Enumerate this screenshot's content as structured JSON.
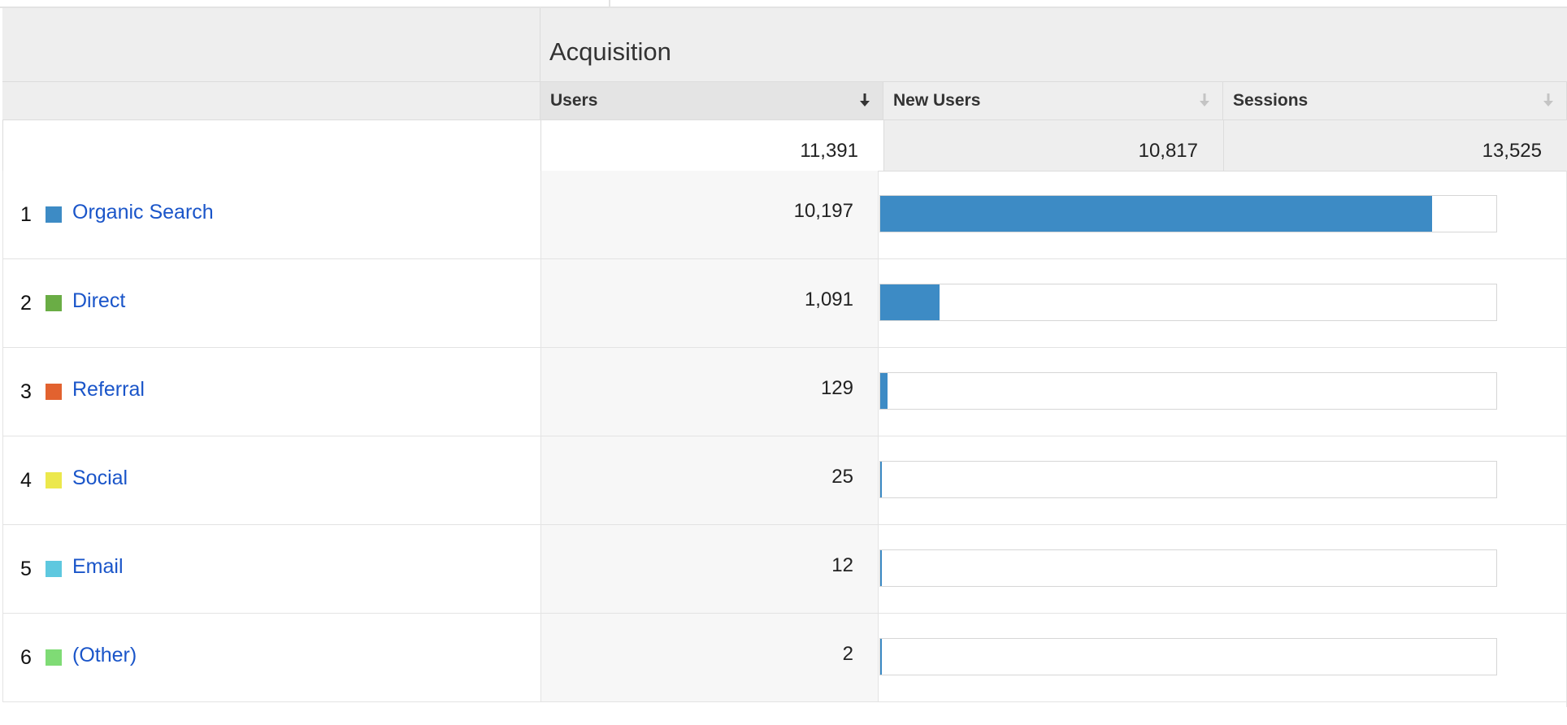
{
  "group_header": {
    "title": "Acquisition"
  },
  "columns": [
    {
      "key": "users",
      "label": "Users",
      "sorted": true,
      "sort_direction": "desc"
    },
    {
      "key": "new_users",
      "label": "New Users",
      "sorted": false
    },
    {
      "key": "sessions",
      "label": "Sessions",
      "sorted": false
    }
  ],
  "totals": {
    "users": "11,391",
    "new_users": "10,817",
    "sessions": "13,525"
  },
  "rows": [
    {
      "rank": "1",
      "channel": "Organic Search",
      "swatch_color": "#3d8bc5",
      "users": "10,197",
      "users_share": 0.8952
    },
    {
      "rank": "2",
      "channel": "Direct",
      "swatch_color": "#6aad45",
      "users": "1,091",
      "users_share": 0.0958
    },
    {
      "rank": "3",
      "channel": "Referral",
      "swatch_color": "#e2622f",
      "users": "129",
      "users_share": 0.0113
    },
    {
      "rank": "4",
      "channel": "Social",
      "swatch_color": "#ece84c",
      "users": "25",
      "users_share": 0.0022
    },
    {
      "rank": "5",
      "channel": "Email",
      "swatch_color": "#5ec8df",
      "users": "12",
      "users_share": 0.0011
    },
    {
      "rank": "6",
      "channel": "(Other)",
      "swatch_color": "#7fdb75",
      "users": "2",
      "users_share": 0.0002
    }
  ],
  "colors": {
    "bar": "#3d8bc5",
    "link": "#1a55c9",
    "header_bg": "#eeeeee"
  }
}
